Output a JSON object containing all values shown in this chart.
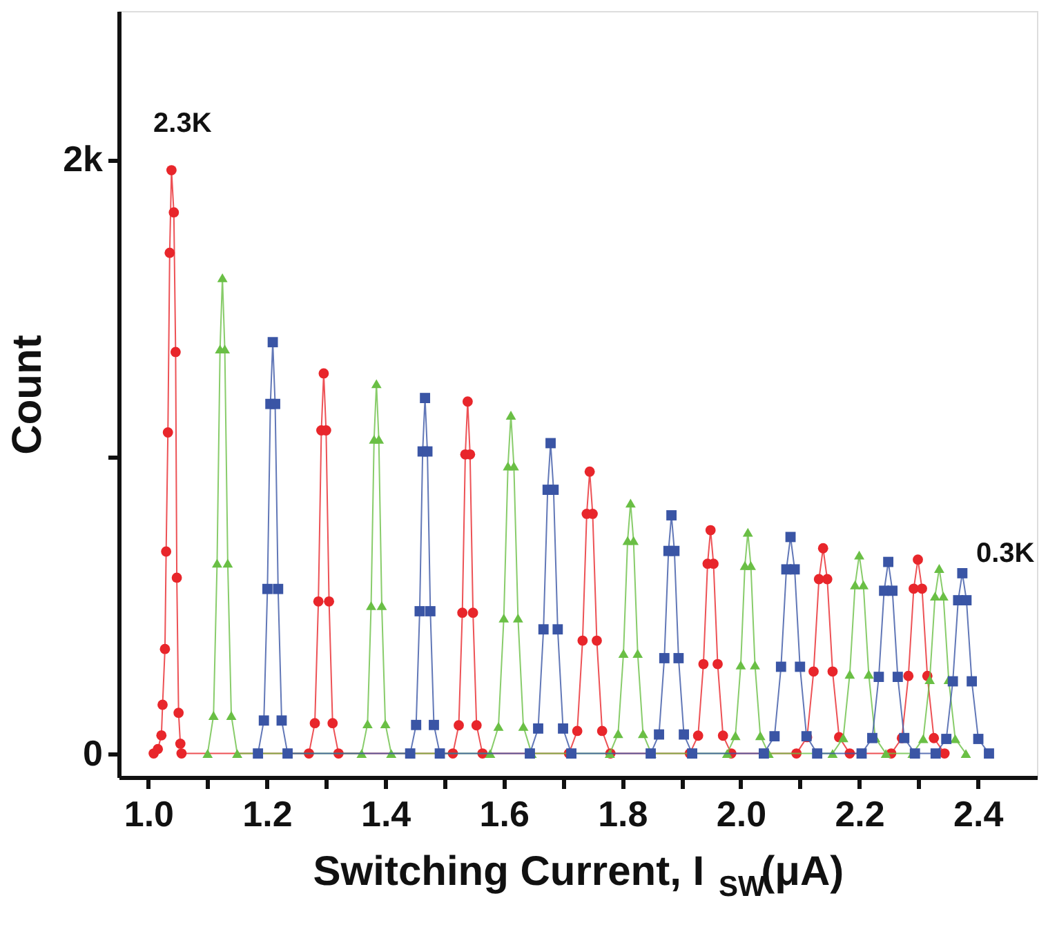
{
  "chart_data": {
    "type": "line",
    "xlabel": "Switching Current, I$_{SW}$(μA)",
    "ylabel": "Count",
    "xlim": [
      0.95,
      2.5
    ],
    "ylim": [
      -80,
      2500
    ],
    "xticks": [
      {
        "value": 1.0,
        "label": "1.0"
      },
      {
        "value": 1.1,
        "label": null
      },
      {
        "value": 1.2,
        "label": "1.2"
      },
      {
        "value": 1.3,
        "label": null
      },
      {
        "value": 1.4,
        "label": "1.4"
      },
      {
        "value": 1.5,
        "label": null
      },
      {
        "value": 1.6,
        "label": "1.6"
      },
      {
        "value": 1.7,
        "label": null
      },
      {
        "value": 1.8,
        "label": "1.8"
      },
      {
        "value": 1.9,
        "label": null
      },
      {
        "value": 2.0,
        "label": "2.0"
      },
      {
        "value": 2.1,
        "label": null
      },
      {
        "value": 2.2,
        "label": "2.2"
      },
      {
        "value": 2.3,
        "label": null
      },
      {
        "value": 2.4,
        "label": "2.4"
      }
    ],
    "yticks": [
      0,
      {
        "value": 1000,
        "label": null
      },
      {
        "value": 2000,
        "label": "2k"
      }
    ],
    "grid": false,
    "line_style": "solid",
    "annotations": [
      "2.3K",
      "0.3K"
    ],
    "series": [
      {
        "color": "#e8262b",
        "marker": "circle",
        "x": [
          1.009,
          1.016,
          1.022,
          1.024,
          1.028,
          1.03,
          1.033,
          1.036,
          1.039,
          1.043,
          1.046,
          1.048,
          1.051,
          1.054,
          1.056,
          1.271,
          1.281,
          1.287,
          1.292,
          1.296,
          1.3,
          1.305,
          1.311,
          1.321,
          1.514,
          1.524,
          1.53,
          1.535,
          1.539,
          1.543,
          1.548,
          1.554,
          1.564,
          1.71,
          1.724,
          1.733,
          1.74,
          1.745,
          1.75,
          1.757,
          1.766,
          1.78,
          1.914,
          1.928,
          1.937,
          1.944,
          1.949,
          1.954,
          1.961,
          1.97,
          1.984,
          2.094,
          2.112,
          2.123,
          2.132,
          2.139,
          2.146,
          2.155,
          2.166,
          2.184,
          2.254,
          2.272,
          2.283,
          2.292,
          2.299,
          2.306,
          2.315,
          2.326,
          2.344
        ],
        "values": [
          0,
          15,
          61,
          164,
          352,
          680,
          1081,
          1686,
          1964,
          1822,
          1352,
          592,
          137,
          33,
          0,
          0,
          102,
          512,
          1088,
          1280,
          1088,
          512,
          102,
          0,
          0,
          95,
          474,
          1007,
          1185,
          1007,
          474,
          95,
          0,
          0,
          76,
          380,
          807,
          949,
          807,
          380,
          76,
          0,
          0,
          60,
          301,
          639,
          752,
          639,
          301,
          60,
          0,
          0,
          55,
          276,
          587,
          691,
          587,
          276,
          55,
          0,
          0,
          52,
          261,
          555,
          653,
          555,
          261,
          52,
          0
        ]
      },
      {
        "color": "#6abf45",
        "marker": "triangle",
        "x": [
          1.1,
          1.11,
          1.116,
          1.121,
          1.125,
          1.129,
          1.134,
          1.14,
          1.15,
          1.36,
          1.37,
          1.376,
          1.381,
          1.385,
          1.389,
          1.394,
          1.4,
          1.41,
          1.577,
          1.591,
          1.6,
          1.607,
          1.612,
          1.617,
          1.624,
          1.633,
          1.647,
          1.779,
          1.793,
          1.802,
          1.809,
          1.814,
          1.819,
          1.826,
          1.835,
          1.849,
          1.977,
          1.991,
          2.0,
          2.007,
          2.012,
          2.017,
          2.024,
          2.033,
          2.047,
          2.155,
          2.173,
          2.184,
          2.193,
          2.2,
          2.207,
          2.216,
          2.227,
          2.245,
          2.29,
          2.308,
          2.319,
          2.328,
          2.335,
          2.342,
          2.351,
          2.362,
          2.38
        ],
        "values": [
          0,
          128,
          641,
          1362,
          1602,
          1362,
          641,
          128,
          0,
          0,
          100,
          498,
          1058,
          1245,
          1058,
          498,
          100,
          0,
          0,
          91,
          456,
          968,
          1139,
          968,
          456,
          91,
          0,
          0,
          67,
          337,
          717,
          843,
          717,
          337,
          67,
          0,
          0,
          60,
          298,
          633,
          745,
          633,
          298,
          60,
          0,
          0,
          53,
          267,
          568,
          668,
          568,
          267,
          53,
          0,
          0,
          50,
          249,
          530,
          623,
          530,
          249,
          50,
          0
        ]
      },
      {
        "color": "#3a55a5",
        "marker": "square",
        "x": [
          1.185,
          1.195,
          1.201,
          1.206,
          1.21,
          1.214,
          1.219,
          1.225,
          1.235,
          1.442,
          1.452,
          1.458,
          1.463,
          1.467,
          1.471,
          1.476,
          1.482,
          1.492,
          1.644,
          1.658,
          1.667,
          1.674,
          1.679,
          1.684,
          1.691,
          1.7,
          1.714,
          1.848,
          1.862,
          1.871,
          1.878,
          1.883,
          1.888,
          1.895,
          1.904,
          1.918,
          2.039,
          2.057,
          2.068,
          2.077,
          2.084,
          2.091,
          2.1,
          2.111,
          2.129,
          2.204,
          2.222,
          2.233,
          2.242,
          2.249,
          2.256,
          2.265,
          2.276,
          2.294,
          2.329,
          2.347,
          2.358,
          2.367,
          2.374,
          2.381,
          2.39,
          2.401,
          2.419
        ],
        "values": [
          0,
          111,
          554,
          1177,
          1385,
          1177,
          554,
          111,
          0,
          0,
          96,
          479,
          1017,
          1197,
          1017,
          479,
          96,
          0,
          0,
          84,
          418,
          888,
          1045,
          888,
          418,
          84,
          0,
          0,
          64,
          321,
          682,
          802,
          682,
          321,
          64,
          0,
          0,
          58,
          292,
          620,
          729,
          620,
          292,
          58,
          0,
          0,
          52,
          258,
          548,
          645,
          548,
          258,
          52,
          0,
          0,
          49,
          243,
          516,
          607,
          516,
          243,
          49,
          0
        ]
      }
    ]
  }
}
